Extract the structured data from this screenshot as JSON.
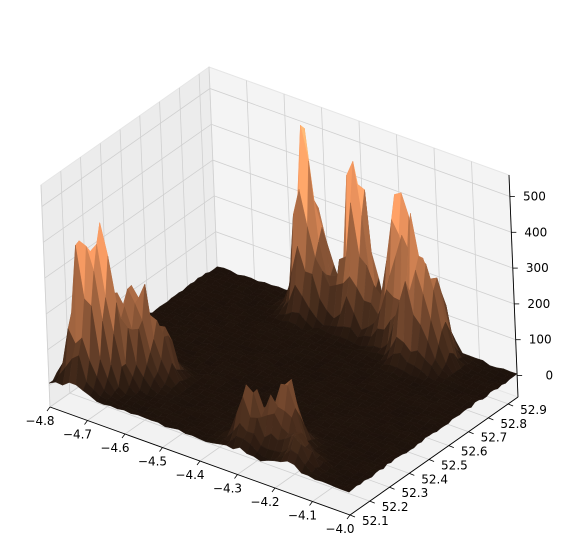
{
  "chart_data": {
    "type": "surface3d",
    "title": "",
    "xlabel": "",
    "ylabel": "",
    "zlabel": "",
    "x_ticks": [
      -4.8,
      -4.7,
      -4.6,
      -4.5,
      -4.4,
      -4.3,
      -4.2,
      -4.1,
      -4.0
    ],
    "x_tick_labels": [
      "−4.8",
      "−4.7",
      "−4.6",
      "−4.5",
      "−4.4",
      "−4.3",
      "−4.2",
      "−4.1",
      "−4.0"
    ],
    "y_ticks": [
      52.1,
      52.2,
      52.3,
      52.4,
      52.5,
      52.6,
      52.7,
      52.8,
      52.9
    ],
    "y_tick_labels": [
      "52.1",
      "52.2",
      "52.3",
      "52.4",
      "52.5",
      "52.6",
      "52.7",
      "52.8",
      "52.9"
    ],
    "z_ticks": [
      0,
      100,
      200,
      300,
      400,
      500
    ],
    "z_tick_labels": [
      "0",
      "100",
      "200",
      "300",
      "400",
      "500"
    ],
    "xlim": [
      -4.8,
      -4.0
    ],
    "ylim": [
      52.1,
      52.95
    ],
    "zlim": [
      -60,
      560
    ],
    "grid": true,
    "colormap": "copper",
    "peaks": [
      {
        "x": -4.74,
        "y": 52.18,
        "height": 420
      },
      {
        "x": -4.7,
        "y": 52.22,
        "height": 300
      },
      {
        "x": -4.66,
        "y": 52.28,
        "height": 250
      },
      {
        "x": -4.62,
        "y": 52.32,
        "height": 180
      },
      {
        "x": -4.52,
        "y": 52.9,
        "height": 470
      },
      {
        "x": -4.4,
        "y": 52.92,
        "height": 430
      },
      {
        "x": -4.28,
        "y": 52.9,
        "height": 400
      },
      {
        "x": -4.22,
        "y": 52.85,
        "height": 310
      },
      {
        "x": -4.17,
        "y": 52.86,
        "height": 200
      },
      {
        "x": -4.3,
        "y": 52.18,
        "height": 150
      },
      {
        "x": -4.23,
        "y": 52.22,
        "height": 210
      },
      {
        "x": -4.16,
        "y": 52.15,
        "height": 90
      }
    ]
  }
}
